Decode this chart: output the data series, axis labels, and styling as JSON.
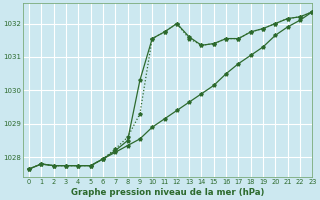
{
  "bg_color": "#cce8f0",
  "grid_color": "#ffffff",
  "line_color": "#2d6a2d",
  "title": "Graphe pression niveau de la mer (hPa)",
  "xlim": [
    -0.5,
    23
  ],
  "ylim": [
    1027.4,
    1032.6
  ],
  "yticks": [
    1028,
    1029,
    1030,
    1031,
    1032
  ],
  "xticks": [
    0,
    1,
    2,
    3,
    4,
    5,
    6,
    7,
    8,
    9,
    10,
    11,
    12,
    13,
    14,
    15,
    16,
    17,
    18,
    19,
    20,
    21,
    22,
    23
  ],
  "s1_x": [
    0,
    1,
    2,
    3,
    4,
    5,
    6,
    7,
    8,
    9,
    10,
    11,
    12,
    13,
    14,
    15,
    16,
    17,
    18,
    19,
    20,
    21,
    22,
    23
  ],
  "s1_y": [
    1027.65,
    1027.8,
    1027.75,
    1027.75,
    1027.75,
    1027.75,
    1027.95,
    1028.15,
    1028.35,
    1028.55,
    1028.9,
    1029.15,
    1029.4,
    1029.65,
    1029.9,
    1030.15,
    1030.5,
    1030.8,
    1031.05,
    1031.3,
    1031.65,
    1031.9,
    1032.1,
    1032.35
  ],
  "s2_x": [
    0,
    1,
    2,
    3,
    4,
    5,
    6,
    7,
    8,
    9,
    10,
    11,
    12,
    13,
    14,
    15,
    16,
    17,
    18,
    19,
    20,
    21,
    22,
    23
  ],
  "s2_y": [
    1027.65,
    1027.8,
    1027.75,
    1027.75,
    1027.75,
    1027.75,
    1027.95,
    1028.25,
    1028.6,
    1029.3,
    1031.55,
    1031.75,
    1032.0,
    1031.55,
    1031.35,
    1031.4,
    1031.55,
    1031.55,
    1031.75,
    1031.85,
    1032.0,
    1032.15,
    1032.2,
    1032.35
  ],
  "s3_x": [
    0,
    1,
    2,
    3,
    4,
    5,
    6,
    7,
    8,
    9,
    10,
    11,
    12,
    13,
    14,
    15,
    16,
    17,
    18,
    19,
    20,
    21,
    22,
    23
  ],
  "s3_y": [
    1027.65,
    1027.8,
    1027.75,
    1027.75,
    1027.75,
    1027.75,
    1027.95,
    1028.2,
    1028.5,
    1030.3,
    1031.55,
    1031.75,
    1032.0,
    1031.6,
    1031.35,
    1031.4,
    1031.55,
    1031.55,
    1031.75,
    1031.85,
    1032.0,
    1032.15,
    1032.2,
    1032.35
  ]
}
